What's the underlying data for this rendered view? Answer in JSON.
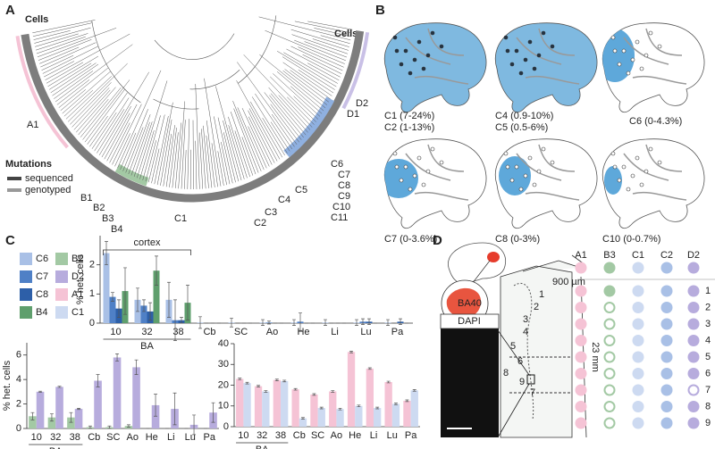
{
  "panels": [
    "A",
    "B",
    "C",
    "D"
  ],
  "panel_a": {
    "cells_left": "Cells",
    "cells_right": "Cells",
    "clones": [
      "A1",
      "D2",
      "D1"
    ],
    "mutations_title": "Mutations",
    "legend": [
      "sequenced",
      "genotyped"
    ],
    "b_labels": [
      "B1",
      "B2",
      "B3",
      "B4"
    ],
    "c_labels": [
      "C1",
      "C2",
      "C3",
      "C4",
      "C5",
      "C6",
      "C7",
      "C8",
      "C9",
      "C10",
      "C11"
    ]
  },
  "panel_b": {
    "captions": [
      [
        "C1 (7-24%)",
        "C2 (1-13%)"
      ],
      [
        "C4 (0.9-10%)",
        "C5 (0.5-6%)"
      ],
      [
        "C6 (0-4.3%)"
      ],
      [
        "C7 (0-3.6%)"
      ],
      [
        "C8 (0-3%)"
      ],
      [
        "C10 (0-0.7%)"
      ]
    ]
  },
  "chart_data": [
    {
      "type": "bar",
      "ylabel": "% het. cells",
      "annotation": "cortex",
      "group_label": "BA",
      "categories": [
        "10",
        "32",
        "38",
        "Cb",
        "SC",
        "Ao",
        "He",
        "Li",
        "Lu",
        "Pa"
      ],
      "ylim": [
        0,
        3
      ],
      "yticks": [
        0,
        1,
        2
      ],
      "series": [
        {
          "name": "C6",
          "color": "#a9c0e6",
          "values": [
            2.4,
            0.8,
            0.8,
            0.02,
            0.02,
            0.02,
            0.02,
            0.02,
            0.02,
            0.02
          ],
          "errors": [
            0.4,
            0.4,
            0.6,
            0.2,
            0.15,
            0.1,
            0.1,
            0.1,
            0.1,
            0.1
          ]
        },
        {
          "name": "C7",
          "color": "#4f80c6",
          "values": [
            0.9,
            0.6,
            0.1,
            0,
            0,
            0.02,
            0.05,
            0,
            0.05,
            0
          ],
          "errors": [
            0.15,
            0.2,
            0.7,
            0,
            0,
            0.05,
            0.3,
            0,
            0.1,
            0
          ]
        },
        {
          "name": "C8",
          "color": "#2d5fa8",
          "values": [
            0.5,
            0.4,
            0.1,
            0,
            0,
            0,
            0,
            0,
            0.05,
            0.05
          ],
          "errors": [
            0.3,
            0.3,
            0.1,
            0,
            0,
            0,
            0,
            0,
            0.1,
            0.1
          ]
        },
        {
          "name": "B4",
          "color": "#5f9f6d",
          "values": [
            1.1,
            1.8,
            0.7,
            0,
            0,
            0,
            0,
            0,
            0,
            0
          ],
          "errors": [
            0.8,
            0.5,
            0.6,
            0,
            0,
            0,
            0,
            0,
            0,
            0
          ]
        }
      ]
    },
    {
      "type": "bar",
      "ylabel": "% het. cells",
      "group_label": "BA",
      "categories": [
        "10",
        "32",
        "38",
        "Cb",
        "SC",
        "Ao",
        "He",
        "Li",
        "Lu",
        "Pa"
      ],
      "ylim": [
        0,
        7
      ],
      "yticks": [
        0,
        2,
        4,
        6
      ],
      "series": [
        {
          "name": "B2",
          "color": "#a3c9a4",
          "values": [
            1.0,
            0.9,
            0.9,
            0.1,
            0.1,
            0.2,
            0,
            0,
            0,
            0
          ],
          "errors": [
            0.3,
            0.3,
            0.4,
            0.1,
            0.1,
            0.1,
            0,
            0,
            0,
            0
          ]
        },
        {
          "name": "D2",
          "color": "#b7acdd",
          "values": [
            3.0,
            3.4,
            1.6,
            3.9,
            5.8,
            5.0,
            1.9,
            1.6,
            0.3,
            1.3
          ],
          "errors": [
            0.05,
            0.05,
            0.05,
            0.5,
            0.3,
            0.6,
            0.9,
            1.3,
            0.8,
            0.8
          ]
        }
      ]
    },
    {
      "type": "bar",
      "group_label": "BA",
      "categories": [
        "10",
        "32",
        "38",
        "Cb",
        "SC",
        "Ao",
        "He",
        "Li",
        "Lu",
        "Pa"
      ],
      "ylim": [
        0,
        40
      ],
      "yticks": [
        0,
        10,
        20,
        30,
        40
      ],
      "series": [
        {
          "name": "A1",
          "color": "#f5c3d5",
          "values": [
            23,
            19.5,
            22.5,
            18,
            15.5,
            17,
            36,
            28,
            21.5,
            12.5
          ],
          "errors": [
            0.4,
            0.4,
            0.4,
            0.4,
            0.4,
            0.4,
            0.4,
            0.4,
            0.4,
            0.4
          ]
        },
        {
          "name": "C1",
          "color": "#cddaf1",
          "values": [
            21,
            17,
            22,
            4,
            9,
            8.5,
            10,
            9,
            11,
            17.5
          ],
          "errors": [
            0.4,
            0.4,
            0.4,
            0.4,
            0.4,
            0.4,
            0.4,
            0.4,
            0.4,
            0.4
          ]
        }
      ]
    }
  ],
  "panel_d": {
    "region": "BA40",
    "stain": "DAPI",
    "thickness": "900 µm",
    "length": "23 mm",
    "columns": [
      "A1",
      "B3",
      "C1",
      "C2",
      "D2"
    ],
    "column_colors": [
      "#f5c3d5",
      "#a3c9a4",
      "#cddaf1",
      "#a9c0e6",
      "#b7acdd"
    ],
    "rows": [
      "1",
      "2",
      "3",
      "4",
      "5",
      "6",
      "7",
      "8",
      "9"
    ],
    "hollow": [
      [
        false,
        false,
        false,
        false,
        false
      ],
      [
        false,
        true,
        false,
        false,
        false
      ],
      [
        false,
        true,
        false,
        false,
        false
      ],
      [
        false,
        true,
        false,
        false,
        false
      ],
      [
        false,
        true,
        false,
        false,
        false
      ],
      [
        false,
        true,
        false,
        false,
        false
      ],
      [
        false,
        true,
        false,
        false,
        true
      ],
      [
        false,
        true,
        false,
        false,
        false
      ],
      [
        false,
        true,
        false,
        false,
        false
      ]
    ]
  }
}
